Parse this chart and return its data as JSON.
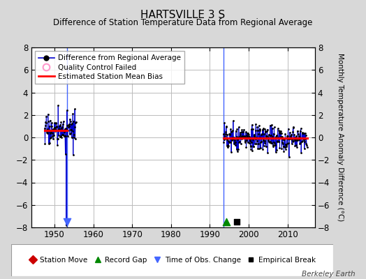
{
  "title": "HARTSVILLE 3 S",
  "subtitle": "Difference of Station Temperature Data from Regional Average",
  "ylabel_right": "Monthly Temperature Anomaly Difference (°C)",
  "credit": "Berkeley Earth",
  "xlim": [
    1944,
    2017
  ],
  "ylim": [
    -8,
    8
  ],
  "yticks": [
    -8,
    -6,
    -4,
    -2,
    0,
    2,
    4,
    6,
    8
  ],
  "xticks": [
    1950,
    1960,
    1970,
    1980,
    1990,
    2000,
    2010
  ],
  "bg_color": "#d8d8d8",
  "plot_bg_color": "#ffffff",
  "grid_color": "#bbbbbb",
  "segment1_start": 1947.5,
  "segment1_end": 1955.5,
  "segment2_start": 1993.5,
  "segment2_end": 2015.0,
  "seg1_bias": 0.65,
  "seg2_bias": -0.05,
  "vline1_x": 1953.2,
  "vline2_x": 1993.5,
  "time_obs_change_x": 1953.2,
  "record_gap_x": 1994.2,
  "empirical_break_x": 1997.0,
  "note_vertical_line_color": "#4466ff",
  "data_line_color": "#0000cc",
  "data_marker_color": "#000000",
  "bias_line_color": "#ff0000",
  "qc_fail_color": "#ff99cc"
}
